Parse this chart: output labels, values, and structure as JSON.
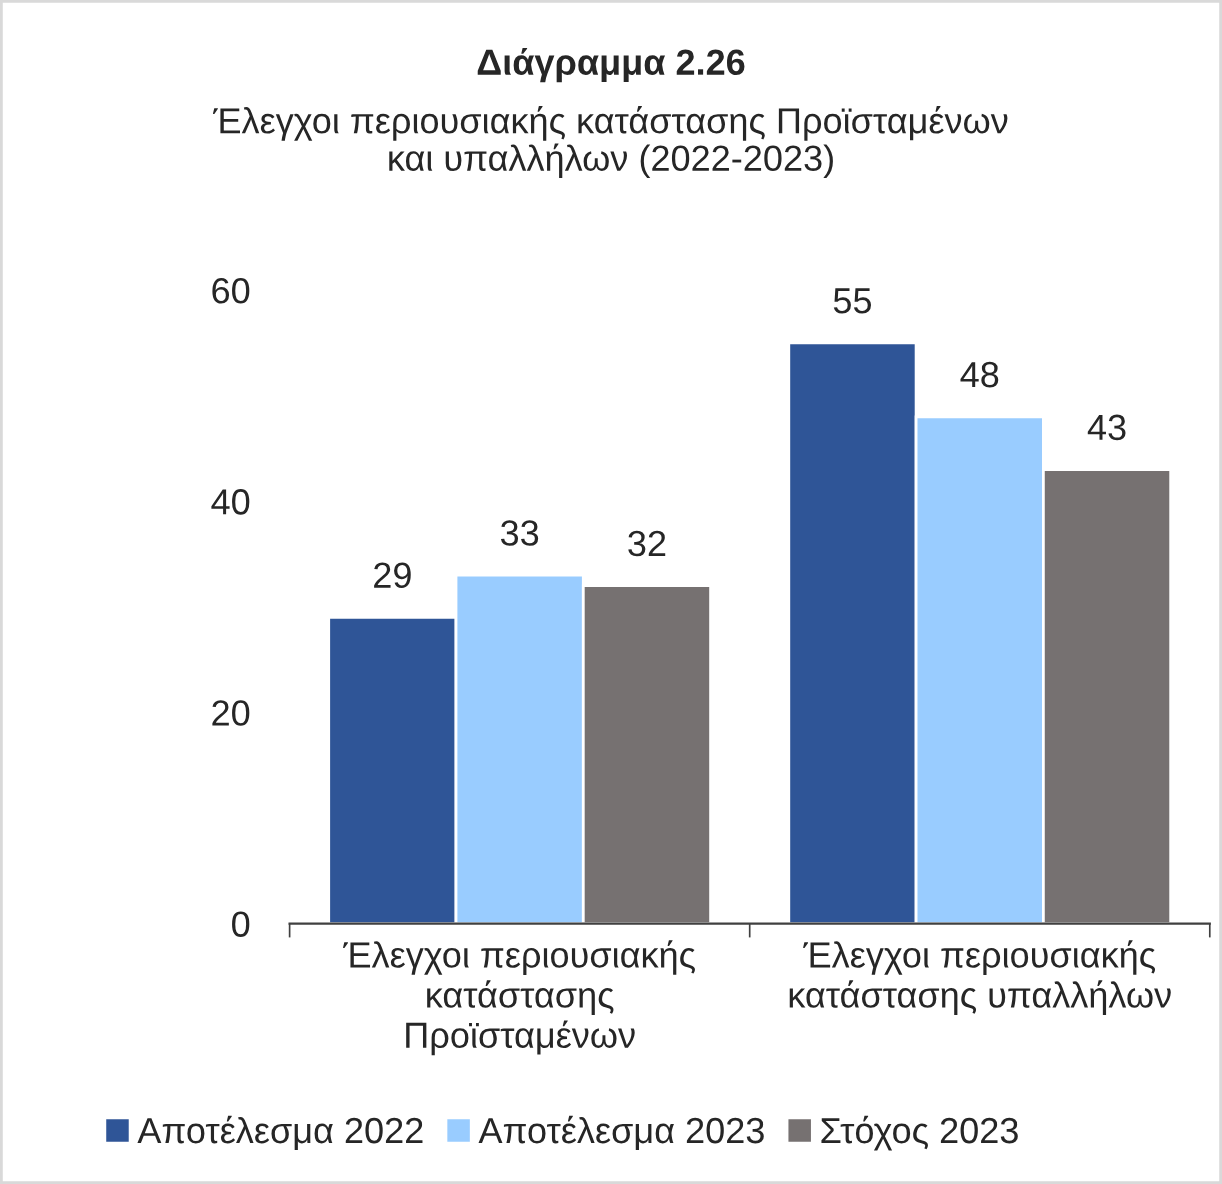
{
  "chart_data": {
    "type": "bar",
    "title": "Διάγραμμα 2.26",
    "subtitle": "Έλεγχοι περιουσιακής κατάστασης Προϊσταμένων\nκαι υπαλλήλων (2022-2023)",
    "categories": [
      "Έλεγχοι περιουσιακής\nκατάστασης\nΠροϊσταμένων",
      "Έλεγχοι περιουσιακής\nκατάστασης υπαλλήλων"
    ],
    "series": [
      {
        "name": "Αποτέλεσμα 2022",
        "color": "#2f5597",
        "values": [
          29,
          55
        ]
      },
      {
        "name": "Αποτέλεσμα 2023",
        "color": "#99ccff",
        "values": [
          33,
          48
        ]
      },
      {
        "name": "Στόχος 2023",
        "color": "#767171",
        "values": [
          32,
          43
        ]
      }
    ],
    "ylim": [
      0,
      60
    ],
    "yticks": [
      0,
      20,
      40,
      60
    ],
    "grid": false,
    "legend": "bottom",
    "data_labels": true
  }
}
